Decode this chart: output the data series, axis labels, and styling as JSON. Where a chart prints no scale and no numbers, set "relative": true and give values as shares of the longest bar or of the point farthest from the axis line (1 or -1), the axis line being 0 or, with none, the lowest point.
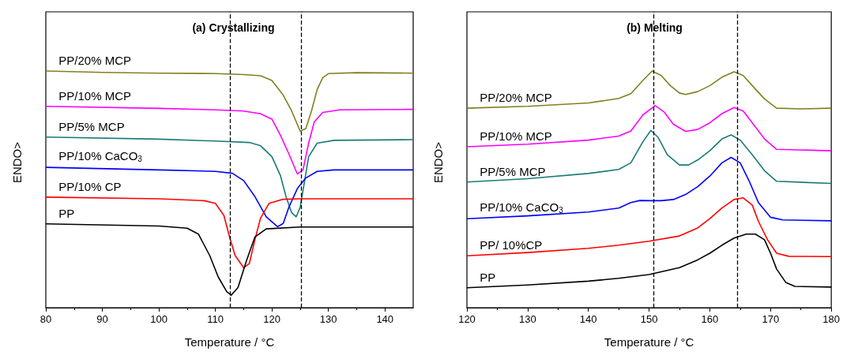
{
  "chart_data": [
    {
      "type": "line",
      "relative": true,
      "title": "(a) Crystallizing",
      "xlabel": "Temperature / °C",
      "ylabel": "ENDO>",
      "xlim": [
        80,
        145
      ],
      "xticks": [
        80,
        90,
        100,
        110,
        120,
        130,
        140
      ],
      "ref_lines": [
        {
          "axis": "x",
          "value": 112.6,
          "color": "#000000",
          "line_style": "dashed"
        },
        {
          "axis": "x",
          "value": 125.2,
          "color": "#000000",
          "line_style": "dashed"
        }
      ],
      "series": [
        {
          "name": "PP/20% MCP",
          "color": "#808020",
          "x": [
            80,
            90,
            100,
            110,
            115,
            118,
            120,
            122,
            123.5,
            125,
            126,
            127,
            128,
            129,
            130,
            135,
            145
          ],
          "values": [
            1.0,
            0.994,
            0.991,
            0.989,
            0.985,
            0.98,
            0.96,
            0.898,
            0.831,
            0.746,
            0.757,
            0.831,
            0.921,
            0.972,
            0.989,
            0.993,
            0.991
          ]
        },
        {
          "name": "PP/10% MCP",
          "color": "#ff00ff",
          "x": [
            80,
            100,
            110,
            115,
            118,
            120,
            121.5,
            123,
            124.5,
            125.5,
            126.5,
            127.5,
            129,
            132,
            145
          ],
          "values": [
            0.851,
            0.842,
            0.836,
            0.831,
            0.819,
            0.797,
            0.729,
            0.65,
            0.565,
            0.582,
            0.695,
            0.785,
            0.825,
            0.836,
            0.838
          ]
        },
        {
          "name": "PP/5% MCP",
          "color": "#1a7a78",
          "x": [
            80,
            100,
            110,
            116,
            118,
            120,
            121.5,
            122.5,
            123.5,
            124.3,
            125,
            125.8,
            126.5,
            128,
            131,
            145
          ],
          "values": [
            0.721,
            0.712,
            0.704,
            0.698,
            0.684,
            0.638,
            0.559,
            0.469,
            0.401,
            0.384,
            0.424,
            0.537,
            0.638,
            0.695,
            0.707,
            0.71
          ]
        },
        {
          "name": "PP/10% CaCO$_{3}$",
          "color": "#0000ff",
          "x": [
            80,
            100,
            110,
            113,
            115,
            117,
            119,
            121,
            122,
            123,
            124.5,
            126,
            128,
            131,
            145
          ],
          "values": [
            0.593,
            0.582,
            0.576,
            0.568,
            0.537,
            0.469,
            0.384,
            0.342,
            0.356,
            0.424,
            0.503,
            0.548,
            0.576,
            0.582,
            0.582
          ]
        },
        {
          "name": "PP/10% CP",
          "color": "#ff0000",
          "x": [
            80,
            100,
            108,
            110,
            111.5,
            112.5,
            113.5,
            115,
            116,
            117,
            118,
            119.5,
            122,
            125,
            145
          ],
          "values": [
            0.467,
            0.46,
            0.452,
            0.441,
            0.39,
            0.299,
            0.22,
            0.169,
            0.186,
            0.288,
            0.379,
            0.441,
            0.458,
            0.46,
            0.46
          ]
        },
        {
          "name": "PP",
          "color": "#000000",
          "x": [
            80,
            100,
            105,
            107,
            109,
            110.5,
            112,
            112.8,
            114,
            115.5,
            117,
            119,
            125,
            145
          ],
          "values": [
            0.354,
            0.345,
            0.336,
            0.311,
            0.22,
            0.13,
            0.068,
            0.053,
            0.085,
            0.198,
            0.299,
            0.333,
            0.341,
            0.341
          ]
        }
      ]
    },
    {
      "type": "line",
      "relative": true,
      "title": "(b) Melting",
      "xlabel": "Temperature / °C",
      "ylabel": "ENDO>",
      "xlim": [
        120,
        180
      ],
      "xticks": [
        120,
        130,
        140,
        150,
        160,
        170,
        180
      ],
      "ref_lines": [
        {
          "axis": "x",
          "value": 150.7,
          "color": "#000000",
          "line_style": "dashed"
        },
        {
          "axis": "x",
          "value": 164.5,
          "color": "#000000",
          "line_style": "dashed"
        }
      ],
      "series": [
        {
          "name": "PP/20% MCP",
          "color": "#808020",
          "x": [
            120,
            130,
            140,
            145,
            147,
            149,
            150.5,
            152,
            153.5,
            155,
            156,
            158,
            160,
            162,
            164,
            165.5,
            167,
            169,
            171,
            175,
            180
          ],
          "values": [
            0.843,
            0.851,
            0.865,
            0.884,
            0.904,
            0.961,
            1.0,
            0.981,
            0.938,
            0.907,
            0.901,
            0.913,
            0.938,
            0.974,
            0.997,
            0.981,
            0.938,
            0.882,
            0.843,
            0.84,
            0.843
          ]
        },
        {
          "name": "PP/10% MCP",
          "color": "#ff00ff",
          "x": [
            120,
            130,
            140,
            145,
            147,
            149,
            151,
            152.5,
            154,
            156,
            158,
            160,
            162,
            164,
            165.5,
            167,
            169,
            171,
            180
          ],
          "values": [
            0.68,
            0.691,
            0.708,
            0.725,
            0.747,
            0.815,
            0.854,
            0.826,
            0.775,
            0.745,
            0.753,
            0.781,
            0.82,
            0.846,
            0.831,
            0.781,
            0.713,
            0.669,
            0.663
          ]
        },
        {
          "name": "PP/5% MCP",
          "color": "#1a7a78",
          "x": [
            120,
            130,
            140,
            145,
            147,
            149,
            150.3,
            151.5,
            153,
            155,
            156.5,
            158,
            160,
            162,
            163.5,
            165,
            167,
            169,
            171,
            180
          ],
          "values": [
            0.531,
            0.545,
            0.567,
            0.584,
            0.612,
            0.702,
            0.749,
            0.719,
            0.646,
            0.603,
            0.603,
            0.624,
            0.663,
            0.713,
            0.73,
            0.708,
            0.646,
            0.579,
            0.534,
            0.525
          ]
        },
        {
          "name": "PP/10% CaCO$_{3}$",
          "color": "#0000ff",
          "x": [
            120,
            130,
            140,
            145,
            147,
            148.5,
            150,
            152,
            154,
            156,
            158,
            160,
            162,
            163.5,
            165,
            166.5,
            168,
            170,
            172,
            180
          ],
          "values": [
            0.376,
            0.388,
            0.404,
            0.421,
            0.444,
            0.453,
            0.452,
            0.452,
            0.457,
            0.478,
            0.511,
            0.556,
            0.612,
            0.635,
            0.612,
            0.534,
            0.444,
            0.382,
            0.371,
            0.367
          ]
        },
        {
          "name": "PP/ 10%CP",
          "color": "#ff0000",
          "x": [
            120,
            130,
            140,
            145,
            150,
            155,
            158,
            160,
            162,
            164,
            165.5,
            167,
            168,
            169.5,
            171,
            173,
            180
          ],
          "values": [
            0.219,
            0.233,
            0.251,
            0.264,
            0.281,
            0.303,
            0.337,
            0.376,
            0.421,
            0.457,
            0.464,
            0.433,
            0.365,
            0.287,
            0.23,
            0.217,
            0.216
          ]
        },
        {
          "name": "PP",
          "color": "#000000",
          "x": [
            120,
            130,
            140,
            145,
            150,
            155,
            158,
            160,
            162,
            164,
            166,
            167.5,
            169,
            170,
            171,
            172.5,
            174,
            180
          ],
          "values": [
            0.084,
            0.096,
            0.112,
            0.124,
            0.14,
            0.169,
            0.202,
            0.23,
            0.264,
            0.294,
            0.311,
            0.311,
            0.287,
            0.23,
            0.163,
            0.107,
            0.09,
            0.087
          ]
        }
      ]
    }
  ]
}
